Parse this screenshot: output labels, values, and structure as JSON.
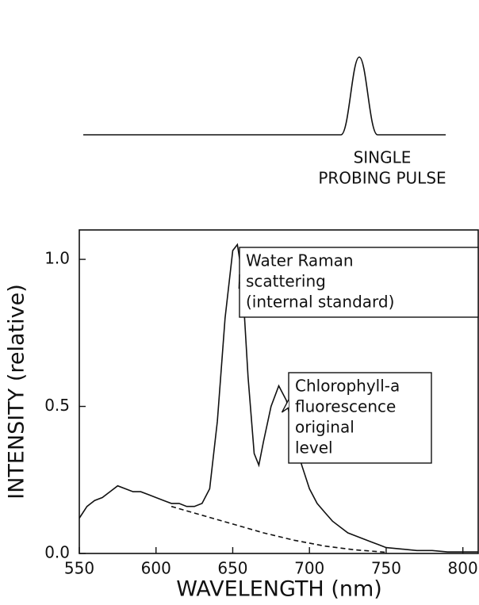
{
  "chart_data": {
    "type": "line",
    "top_panel": {
      "label_lines": [
        "SINGLE",
        "PROBING PULSE"
      ]
    },
    "xlabel": "WAVELENGTH (nm)",
    "ylabel": "INTENSITY (relative)",
    "xlim": [
      550,
      810
    ],
    "ylim": [
      0,
      1.1
    ],
    "xticks": [
      550,
      600,
      650,
      700,
      750,
      800
    ],
    "yticks": [
      {
        "value": 0,
        "label": "0.0"
      },
      {
        "value": 0.5,
        "label": "0.5"
      },
      {
        "value": 1,
        "label": "1.0"
      }
    ],
    "series": [
      {
        "color": "#111111",
        "style": "solid",
        "x": [
          550,
          555,
          560,
          565,
          570,
          575,
          580,
          585,
          590,
          595,
          600,
          605,
          610,
          615,
          620,
          625,
          630,
          635,
          640,
          645,
          650,
          653,
          656,
          660,
          664,
          667,
          670,
          675,
          680,
          685,
          690,
          695,
          700,
          705,
          710,
          715,
          720,
          725,
          730,
          735,
          740,
          745,
          750,
          760,
          770,
          780,
          790,
          800,
          810
        ],
        "values": [
          0.12,
          0.16,
          0.18,
          0.19,
          0.21,
          0.23,
          0.22,
          0.21,
          0.21,
          0.2,
          0.19,
          0.18,
          0.17,
          0.17,
          0.16,
          0.16,
          0.17,
          0.22,
          0.45,
          0.8,
          1.03,
          1.05,
          0.95,
          0.6,
          0.34,
          0.3,
          0.38,
          0.5,
          0.57,
          0.52,
          0.4,
          0.3,
          0.22,
          0.17,
          0.14,
          0.11,
          0.09,
          0.07,
          0.06,
          0.05,
          0.04,
          0.03,
          0.02,
          0.015,
          0.01,
          0.01,
          0.005,
          0.005,
          0.005
        ]
      },
      {
        "color": "#111111",
        "style": "dashed",
        "x": [
          610,
          630,
          650,
          670,
          690,
          710,
          730,
          750
        ],
        "values": [
          0.16,
          0.13,
          0.1,
          0.07,
          0.045,
          0.025,
          0.012,
          0.004
        ]
      }
    ],
    "annotations": [
      {
        "lines": [
          "Water Raman",
          "scattering",
          "(internal standard)"
        ],
        "x": 652,
        "y": 0.9
      },
      {
        "lines": [
          "Chlorophyll-a",
          "fluorescence",
          "original",
          "level"
        ],
        "x": 680,
        "y": 0.48
      }
    ]
  }
}
